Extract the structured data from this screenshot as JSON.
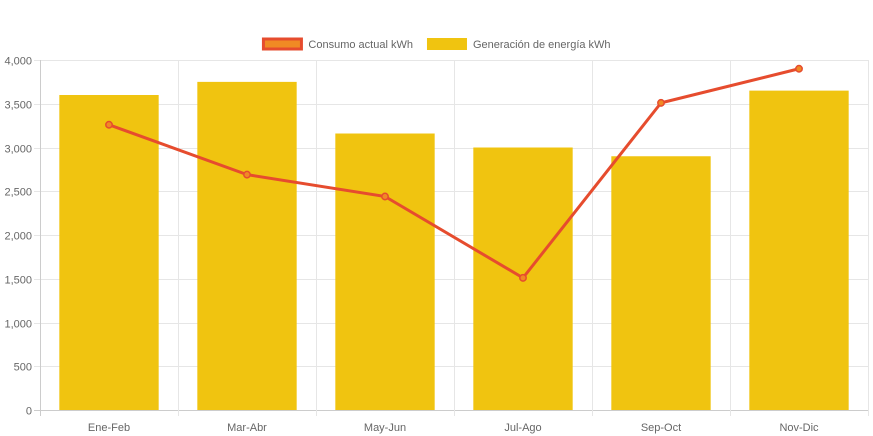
{
  "chart_data": {
    "type": "bar",
    "categories": [
      "Ene-Feb",
      "Mar-Abr",
      "May-Jun",
      "Jul-Ago",
      "Sep-Oct",
      "Nov-Dic"
    ],
    "series": [
      {
        "name": "Generación de energía kWh",
        "type": "bar",
        "color": "#f0c410",
        "values": [
          3600,
          3750,
          3160,
          3000,
          2900,
          3650
        ]
      },
      {
        "name": "Consumo actual kWh",
        "type": "line",
        "color": "#e64c2e",
        "legend_fill": "#f08a24",
        "values": [
          3260,
          2690,
          2440,
          1510,
          3510,
          3900
        ]
      }
    ],
    "ylim": [
      0,
      4000
    ],
    "yticks": [
      0,
      500,
      1000,
      1500,
      2000,
      2500,
      3000,
      3500,
      4000
    ],
    "ytick_labels": [
      "0",
      "500",
      "1,000",
      "1,500",
      "2,000",
      "2,500",
      "3,000",
      "3,500",
      "4,000"
    ],
    "grid": true,
    "legend_position": "top-center"
  }
}
